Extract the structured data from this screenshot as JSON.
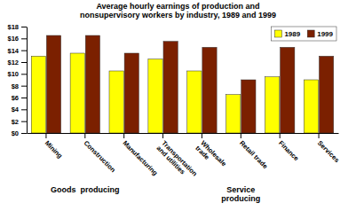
{
  "chart_data": {
    "type": "bar",
    "title": "Average hourly earnings of production and\nnonsupervisory workers by industry, 1989 and 1999",
    "categories": [
      "Mining",
      "Construction",
      "Manufacturing",
      "Transportation\nand utilities",
      "Wholesale\ntrade",
      "Retail trade",
      "Finance",
      "Services"
    ],
    "series": [
      {
        "name": "1989",
        "color": "#FFFF00",
        "values": [
          13.0,
          13.5,
          10.5,
          12.5,
          10.5,
          6.5,
          9.5,
          9.0
        ]
      },
      {
        "name": "1999",
        "color": "#7B2000",
        "values": [
          16.5,
          16.5,
          13.5,
          15.5,
          14.5,
          9.0,
          14.5,
          13.0
        ]
      }
    ],
    "ylim": [
      0,
      18
    ],
    "yticks": [
      {
        "value": 0,
        "label": "$0"
      },
      {
        "value": 2,
        "label": "$2"
      },
      {
        "value": 4,
        "label": "$4"
      },
      {
        "value": 6,
        "label": "$6"
      },
      {
        "value": 8,
        "label": "$8"
      },
      {
        "value": 10,
        "label": "$10"
      },
      {
        "value": 12,
        "label": "$12"
      },
      {
        "value": 14,
        "label": "$14"
      },
      {
        "value": 16,
        "label": "$16"
      },
      {
        "value": 18,
        "label": "$18"
      }
    ],
    "grid": false,
    "legend": "upper right",
    "annotations": [
      {
        "text": "Goods  producing",
        "categories": [
          "Mining",
          "Construction",
          "Manufacturing"
        ]
      },
      {
        "text": "Service\nproducing",
        "categories": [
          "Transportation\nand utilities",
          "Wholesale\ntrade",
          "Retail trade",
          "Finance",
          "Services"
        ]
      }
    ]
  }
}
